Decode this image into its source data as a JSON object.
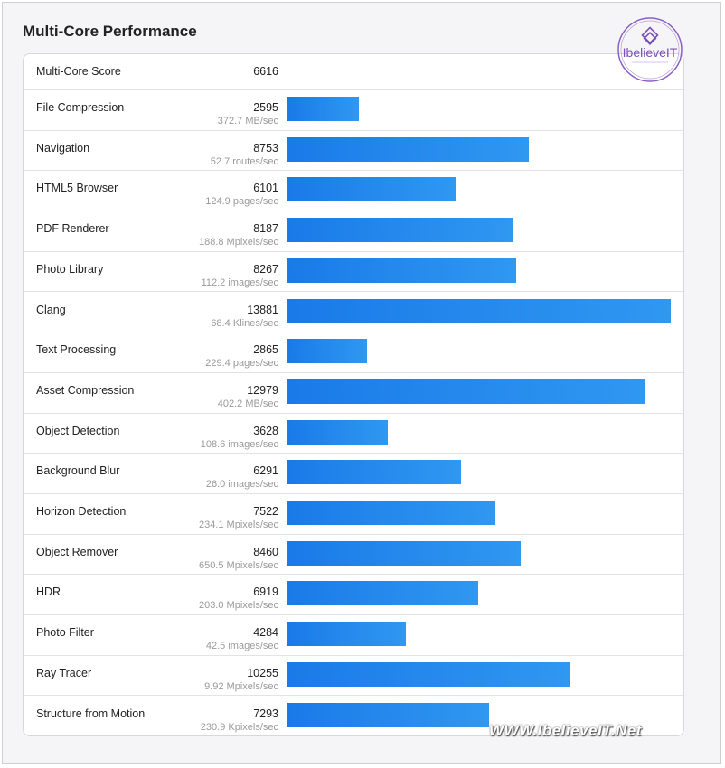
{
  "page": {
    "title": "Multi-Core Performance"
  },
  "watermark": {
    "logo_text": "IbelieveIT",
    "footer_text": "WWW.IbelieveIT.Net"
  },
  "colors": {
    "bar_start": "#1a7ae8",
    "bar_end": "#2f98f1",
    "background": "#f5f5f7"
  },
  "chart_data": {
    "type": "bar",
    "orientation": "horizontal",
    "title": "Multi-Core Performance",
    "summary": {
      "label": "Multi-Core Score",
      "value": 6616
    },
    "categories": [
      "File Compression",
      "Navigation",
      "HTML5 Browser",
      "PDF Renderer",
      "Photo Library",
      "Clang",
      "Text Processing",
      "Asset Compression",
      "Object Detection",
      "Background Blur",
      "Horizon Detection",
      "Object Remover",
      "HDR",
      "Photo Filter",
      "Ray Tracer",
      "Structure from Motion"
    ],
    "values": [
      2595,
      8753,
      6101,
      8187,
      8267,
      13881,
      2865,
      12979,
      3628,
      6291,
      7522,
      8460,
      6919,
      4284,
      10255,
      7293
    ],
    "rates": [
      "372.7 MB/sec",
      "52.7 routes/sec",
      "124.9 pages/sec",
      "188.8 Mpixels/sec",
      "112.2 images/sec",
      "68.4 Klines/sec",
      "229.4 pages/sec",
      "402.2 MB/sec",
      "108.6 images/sec",
      "26.0 images/sec",
      "234.1 Mpixels/sec",
      "650.5 Mpixels/sec",
      "203.0 Mpixels/sec",
      "42.5 images/sec",
      "9.92 Mpixels/sec",
      "230.9 Kpixels/sec"
    ],
    "xlim": [
      0,
      13881
    ],
    "grid": false,
    "legend": "none"
  }
}
